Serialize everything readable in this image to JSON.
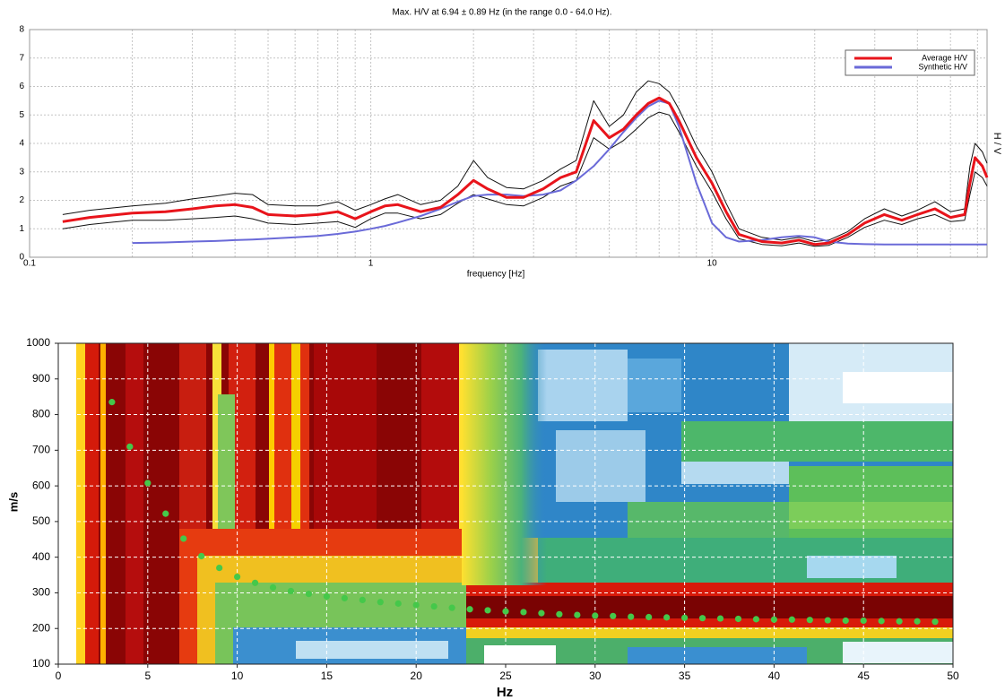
{
  "chart_data": [
    {
      "type": "line",
      "title": "Max. H/V at 6.94 ± 0.89 Hz (in the range 0.0 - 64.0 Hz).",
      "x_label": "frequency [Hz]",
      "y_label": "H / V",
      "log_x": true,
      "grid": true,
      "legend": "upper right",
      "xlim": [
        0.1,
        64
      ],
      "xticks": [
        0.1,
        1,
        10
      ],
      "ylim": [
        0,
        8
      ],
      "yticks": [
        0,
        1,
        2,
        3,
        4,
        5,
        6,
        7,
        8
      ],
      "x": [
        0.125,
        0.15,
        0.2,
        0.25,
        0.3,
        0.35,
        0.4,
        0.45,
        0.5,
        0.6,
        0.7,
        0.8,
        0.9,
        1,
        1.1,
        1.2,
        1.4,
        1.6,
        1.8,
        2,
        2.2,
        2.5,
        2.8,
        3.2,
        3.6,
        4,
        4.5,
        5,
        5.5,
        6,
        6.5,
        7,
        7.5,
        8,
        9,
        10,
        11,
        12,
        14,
        16,
        18,
        20,
        22,
        25,
        28,
        32,
        36,
        40,
        45,
        50,
        55,
        57,
        59,
        62,
        64
      ],
      "series": [
        {
          "name": "Average H/V",
          "color": "#e8141b",
          "values": [
            1.25,
            1.4,
            1.55,
            1.6,
            1.7,
            1.8,
            1.85,
            1.75,
            1.5,
            1.45,
            1.5,
            1.6,
            1.35,
            1.6,
            1.8,
            1.85,
            1.6,
            1.75,
            2.2,
            2.7,
            2.4,
            2.1,
            2.1,
            2.4,
            2.8,
            3.0,
            4.8,
            4.2,
            4.5,
            5.0,
            5.4,
            5.6,
            5.4,
            4.8,
            3.5,
            2.6,
            1.6,
            0.8,
            0.55,
            0.5,
            0.6,
            0.45,
            0.5,
            0.8,
            1.2,
            1.5,
            1.3,
            1.5,
            1.7,
            1.4,
            1.5,
            2.6,
            3.5,
            3.2,
            2.8
          ]
        },
        {
          "name": "Synthetic H/V",
          "color": "#6a6ad8",
          "values": [
            null,
            null,
            0.5,
            0.52,
            0.55,
            0.57,
            0.6,
            0.62,
            0.65,
            0.7,
            0.75,
            0.82,
            0.9,
            1.0,
            1.1,
            1.22,
            1.45,
            1.7,
            1.95,
            2.15,
            2.2,
            2.2,
            2.15,
            2.2,
            2.35,
            2.7,
            3.2,
            3.8,
            4.4,
            4.9,
            5.3,
            5.5,
            5.4,
            4.6,
            2.6,
            1.2,
            0.7,
            0.55,
            0.6,
            0.7,
            0.75,
            0.7,
            0.55,
            0.48,
            0.46,
            0.45,
            0.45,
            0.45,
            0.45,
            0.45,
            0.45,
            0.45,
            0.45,
            0.45,
            0.45
          ]
        },
        {
          "color": "#111111",
          "values": [
            1.5,
            1.65,
            1.8,
            1.9,
            2.05,
            2.15,
            2.25,
            2.2,
            1.85,
            1.8,
            1.8,
            1.95,
            1.65,
            1.85,
            2.05,
            2.2,
            1.85,
            2.0,
            2.5,
            3.4,
            2.8,
            2.45,
            2.4,
            2.7,
            3.1,
            3.4,
            5.5,
            4.6,
            5.0,
            5.8,
            6.2,
            6.1,
            5.8,
            5.2,
            3.9,
            3.0,
            1.9,
            1.0,
            0.7,
            0.6,
            0.7,
            0.55,
            0.6,
            0.9,
            1.35,
            1.7,
            1.45,
            1.65,
            1.95,
            1.6,
            1.7,
            3.2,
            4.0,
            3.7,
            3.3
          ]
        },
        {
          "color": "#111111",
          "values": [
            1.0,
            1.15,
            1.3,
            1.3,
            1.35,
            1.4,
            1.45,
            1.35,
            1.2,
            1.15,
            1.2,
            1.25,
            1.05,
            1.35,
            1.55,
            1.55,
            1.35,
            1.5,
            1.9,
            2.2,
            2.05,
            1.85,
            1.8,
            2.1,
            2.5,
            2.7,
            4.2,
            3.8,
            4.1,
            4.5,
            4.9,
            5.1,
            5.0,
            4.4,
            3.2,
            2.3,
            1.35,
            0.65,
            0.45,
            0.4,
            0.5,
            0.38,
            0.42,
            0.7,
            1.05,
            1.3,
            1.15,
            1.35,
            1.5,
            1.25,
            1.3,
            2.2,
            3.0,
            2.8,
            2.5
          ]
        }
      ]
    },
    {
      "type": "scatter",
      "x_label": "Hz",
      "y_label": "m/s",
      "grid": true,
      "color": "#45c84a",
      "xlim": [
        0,
        50
      ],
      "xticks": [
        0,
        5,
        10,
        15,
        20,
        25,
        30,
        35,
        40,
        45,
        50
      ],
      "ylim": [
        100,
        1000
      ],
      "yticks": [
        100,
        200,
        300,
        400,
        500,
        600,
        700,
        800,
        900,
        1000
      ],
      "x": [
        3,
        4,
        5,
        6,
        7,
        8,
        9,
        10,
        11,
        12,
        13,
        14,
        15,
        16,
        17,
        18,
        19,
        20,
        21,
        22,
        23,
        24,
        25,
        26,
        27,
        28,
        29,
        30,
        31,
        32,
        33,
        34,
        35,
        36,
        37,
        38,
        39,
        40,
        41,
        42,
        43,
        44,
        45,
        46,
        47,
        48,
        49
      ],
      "values": [
        835,
        710,
        608,
        522,
        452,
        403,
        370,
        345,
        328,
        315,
        305,
        297,
        290,
        285,
        280,
        274,
        270,
        266,
        262,
        258,
        254,
        251,
        248,
        246,
        243,
        240,
        238,
        236,
        235,
        233,
        232,
        231,
        230,
        229,
        228,
        227,
        226,
        225,
        225,
        224,
        223,
        222,
        222,
        221,
        220,
        220,
        219
      ]
    }
  ]
}
